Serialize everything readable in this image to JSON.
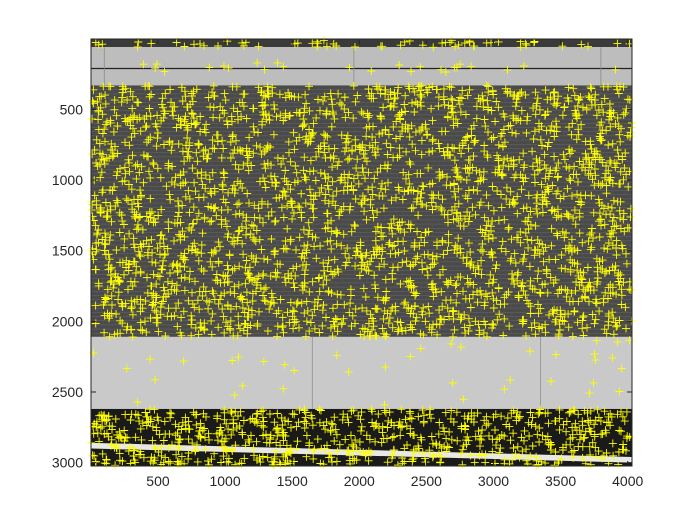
{
  "figure": {
    "x_range": [
      1,
      4032
    ],
    "y_range": [
      1,
      3024
    ],
    "x_ticks": [
      500,
      1000,
      1500,
      2000,
      2500,
      3000,
      3500,
      4000
    ],
    "y_ticks": [
      500,
      1000,
      1500,
      2000,
      2500,
      3000
    ],
    "x_tick_labels": [
      "500",
      "1000",
      "1500",
      "2000",
      "2500",
      "3000",
      "3500",
      "4000"
    ],
    "y_tick_labels": [
      "500",
      "1000",
      "1500",
      "2000",
      "2500",
      "3000"
    ],
    "marker": {
      "shape": "plus",
      "color": "#ffff00"
    },
    "image_scene": {
      "top_panel": {
        "y": [
          1,
          330
        ],
        "color": "#bdbdbd"
      },
      "brick_wall": {
        "y": [
          330,
          2110
        ],
        "color": "#4a4a4a"
      },
      "concrete_wall": {
        "y": [
          2110,
          2620
        ],
        "color": "#c9c9c9"
      },
      "ground": {
        "y": [
          2620,
          3024
        ],
        "color": "#1a1a1a"
      },
      "white_line": {
        "y": [
          2900,
          2950
        ],
        "color": "#e8e8e8"
      }
    },
    "feature_density": [
      {
        "y": [
          10,
          60
        ],
        "count": 60
      },
      {
        "y": [
          170,
          240
        ],
        "count": 25
      },
      {
        "y": [
          330,
          2110
        ],
        "count": 2600
      },
      {
        "y": [
          2110,
          2600
        ],
        "count": 40
      },
      {
        "y": [
          2620,
          3020
        ],
        "count": 700
      }
    ]
  }
}
